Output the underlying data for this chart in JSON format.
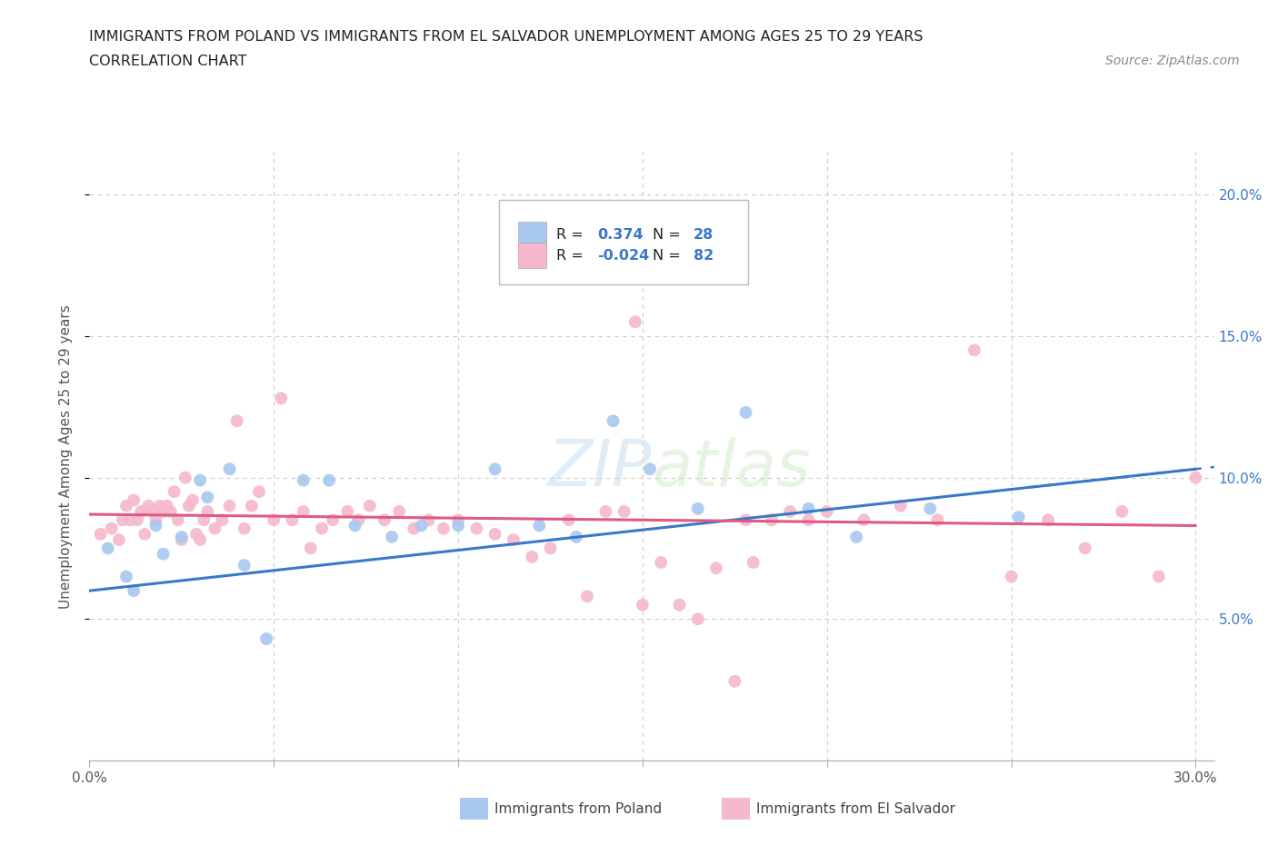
{
  "title_line1": "IMMIGRANTS FROM POLAND VS IMMIGRANTS FROM EL SALVADOR UNEMPLOYMENT AMONG AGES 25 TO 29 YEARS",
  "title_line2": "CORRELATION CHART",
  "source_text": "Source: ZipAtlas.com",
  "ylabel": "Unemployment Among Ages 25 to 29 years",
  "poland_color": "#a8c8f0",
  "salvador_color": "#f5b8cc",
  "poland_line_color": "#3a78c9",
  "salvador_line_color": "#e05a80",
  "legend_text_color": "#3a78c9",
  "poland_R": "0.374",
  "poland_N": "28",
  "salvador_R": "-0.024",
  "salvador_N": "82",
  "watermark": "ZIPatlas",
  "poland_x": [
    0.005,
    0.01,
    0.012,
    0.018,
    0.02,
    0.025,
    0.03,
    0.032,
    0.038,
    0.042,
    0.048,
    0.058,
    0.065,
    0.072,
    0.082,
    0.09,
    0.1,
    0.11,
    0.122,
    0.132,
    0.142,
    0.152,
    0.165,
    0.178,
    0.195,
    0.208,
    0.228,
    0.252
  ],
  "poland_y": [
    0.075,
    0.065,
    0.06,
    0.083,
    0.073,
    0.079,
    0.099,
    0.093,
    0.103,
    0.069,
    0.043,
    0.099,
    0.099,
    0.083,
    0.079,
    0.083,
    0.083,
    0.103,
    0.083,
    0.079,
    0.12,
    0.103,
    0.089,
    0.123,
    0.089,
    0.079,
    0.089,
    0.086
  ],
  "salvador_x": [
    0.003,
    0.006,
    0.008,
    0.009,
    0.01,
    0.011,
    0.012,
    0.013,
    0.014,
    0.015,
    0.016,
    0.017,
    0.018,
    0.019,
    0.02,
    0.021,
    0.022,
    0.023,
    0.024,
    0.025,
    0.026,
    0.027,
    0.028,
    0.029,
    0.03,
    0.031,
    0.032,
    0.034,
    0.036,
    0.038,
    0.04,
    0.042,
    0.044,
    0.046,
    0.05,
    0.052,
    0.055,
    0.058,
    0.06,
    0.063,
    0.066,
    0.07,
    0.073,
    0.076,
    0.08,
    0.084,
    0.088,
    0.092,
    0.096,
    0.1,
    0.105,
    0.11,
    0.115,
    0.12,
    0.125,
    0.13,
    0.135,
    0.14,
    0.145,
    0.15,
    0.155,
    0.16,
    0.165,
    0.17,
    0.175,
    0.18,
    0.185,
    0.19,
    0.195,
    0.2,
    0.21,
    0.22,
    0.23,
    0.24,
    0.25,
    0.26,
    0.27,
    0.28,
    0.29,
    0.3,
    0.148,
    0.178
  ],
  "salvador_y": [
    0.08,
    0.082,
    0.078,
    0.085,
    0.09,
    0.085,
    0.092,
    0.085,
    0.088,
    0.08,
    0.09,
    0.088,
    0.085,
    0.09,
    0.088,
    0.09,
    0.088,
    0.095,
    0.085,
    0.078,
    0.1,
    0.09,
    0.092,
    0.08,
    0.078,
    0.085,
    0.088,
    0.082,
    0.085,
    0.09,
    0.12,
    0.082,
    0.09,
    0.095,
    0.085,
    0.128,
    0.085,
    0.088,
    0.075,
    0.082,
    0.085,
    0.088,
    0.085,
    0.09,
    0.085,
    0.088,
    0.082,
    0.085,
    0.082,
    0.085,
    0.082,
    0.08,
    0.078,
    0.072,
    0.075,
    0.085,
    0.058,
    0.088,
    0.088,
    0.055,
    0.07,
    0.055,
    0.05,
    0.068,
    0.028,
    0.07,
    0.085,
    0.088,
    0.085,
    0.088,
    0.085,
    0.09,
    0.085,
    0.145,
    0.065,
    0.085,
    0.075,
    0.088,
    0.065,
    0.1,
    0.155,
    0.085
  ],
  "poland_line_x": [
    0.0,
    0.3
  ],
  "poland_line_y": [
    0.06,
    0.103
  ],
  "salvador_line_x": [
    0.0,
    0.3
  ],
  "salvador_line_y": [
    0.087,
    0.083
  ],
  "xlim": [
    0.0,
    0.305
  ],
  "ylim": [
    0.0,
    0.215
  ],
  "xtick_pos": [
    0.0,
    0.05,
    0.1,
    0.15,
    0.2,
    0.25,
    0.3
  ],
  "ytick_pos": [
    0.05,
    0.1,
    0.15,
    0.2
  ],
  "ytick_labels": [
    "5.0%",
    "10.0%",
    "15.0%",
    "20.0%"
  ]
}
